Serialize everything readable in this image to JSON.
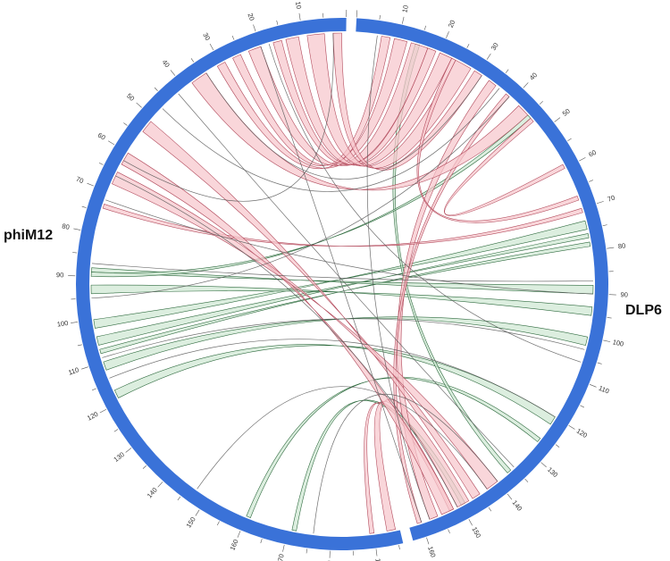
{
  "colors": {
    "ideogram": "#3a72d8",
    "link_same_fill": "#f7c6cc",
    "link_same_stroke": "#b24a5c",
    "link_inv_fill": "#cfe8d3",
    "link_inv_stroke": "#2f6b3f",
    "tick": "#555555"
  },
  "genomes": [
    {
      "id": "phiM12",
      "label": "phiM12",
      "length_kb": 196,
      "label_step": 10
    },
    {
      "id": "DLP6",
      "label": "DLP6",
      "length_kb": 163,
      "label_step": 10
    }
  ],
  "links": [
    {
      "type": "same",
      "a": [
        "phiM12",
        193,
        195
      ],
      "b": [
        "DLP6",
        148,
        151
      ]
    },
    {
      "type": "same",
      "a": [
        "phiM12",
        189,
        190
      ],
      "b": [
        "DLP6",
        152,
        153
      ]
    },
    {
      "type": "same",
      "a": [
        "DLP6",
        6,
        8
      ],
      "b": [
        "phiM12",
        25,
        27
      ]
    },
    {
      "type": "same",
      "a": [
        "DLP6",
        9,
        12
      ],
      "b": [
        "phiM12",
        29,
        31
      ]
    },
    {
      "type": "same",
      "a": [
        "DLP6",
        13,
        17
      ],
      "b": [
        "phiM12",
        20,
        23
      ]
    },
    {
      "type": "same",
      "a": [
        "DLP6",
        17,
        19
      ],
      "b": [
        "phiM12",
        15,
        17
      ]
    },
    {
      "type": "same",
      "a": [
        "DLP6",
        20,
        23
      ],
      "b": [
        "phiM12",
        11,
        14
      ]
    },
    {
      "type": "same",
      "a": [
        "DLP6",
        24,
        28
      ],
      "b": [
        "phiM12",
        5,
        9
      ]
    },
    {
      "type": "same",
      "a": [
        "DLP6",
        29,
        31
      ],
      "b": [
        "phiM12",
        1,
        3
      ]
    },
    {
      "type": "same",
      "a": [
        "DLP6",
        33,
        35
      ],
      "b": [
        "DLP6",
        156,
        158
      ]
    },
    {
      "type": "same",
      "a": [
        "DLP6",
        38,
        39
      ],
      "b": [
        "DLP6",
        160,
        161
      ]
    },
    {
      "type": "same",
      "a": [
        "DLP6",
        42,
        45
      ],
      "b": [
        "phiM12",
        34,
        38
      ]
    },
    {
      "type": "same",
      "a": [
        "DLP6",
        46,
        47
      ],
      "b": [
        "DLP6",
        59,
        60
      ]
    },
    {
      "type": "same",
      "a": [
        "DLP6",
        23,
        24
      ],
      "b": [
        "DLP6",
        67,
        68
      ]
    },
    {
      "type": "same",
      "a": [
        "DLP6",
        70,
        71
      ],
      "b": [
        "phiM12",
        73,
        74
      ]
    },
    {
      "type": "same",
      "a": [
        "phiM12",
        60,
        63
      ],
      "b": [
        "DLP6",
        152,
        155
      ]
    },
    {
      "type": "same",
      "a": [
        "phiM12",
        51,
        54
      ],
      "b": [
        "DLP6",
        145,
        147
      ]
    },
    {
      "type": "same",
      "a": [
        "phiM12",
        65,
        68
      ],
      "b": [
        "DLP6",
        140,
        143
      ]
    },
    {
      "type": "inv",
      "a": [
        "phiM12",
        160,
        161
      ],
      "b": [
        "DLP6",
        126,
        127
      ]
    },
    {
      "type": "inv",
      "a": [
        "phiM12",
        117,
        119
      ],
      "b": [
        "DLP6",
        120,
        122
      ]
    },
    {
      "type": "inv",
      "a": [
        "phiM12",
        110,
        112
      ],
      "b": [
        "DLP6",
        100,
        102
      ]
    },
    {
      "type": "inv",
      "a": [
        "phiM12",
        107,
        108
      ],
      "b": [
        "DLP6",
        78,
        79
      ]
    },
    {
      "type": "inv",
      "a": [
        "phiM12",
        104,
        106
      ],
      "b": [
        "DLP6",
        76,
        77
      ]
    },
    {
      "type": "inv",
      "a": [
        "phiM12",
        100,
        102
      ],
      "b": [
        "DLP6",
        73,
        75
      ]
    },
    {
      "type": "inv",
      "a": [
        "phiM12",
        92,
        94
      ],
      "b": [
        "DLP6",
        93,
        95
      ]
    },
    {
      "type": "inv",
      "a": [
        "phiM12",
        88,
        89
      ],
      "b": [
        "DLP6",
        88,
        90
      ]
    },
    {
      "type": "inv",
      "a": [
        "DLP6",
        14,
        15
      ],
      "b": [
        "DLP6",
        136,
        137
      ]
    },
    {
      "type": "inv",
      "a": [
        "phiM12",
        89,
        90
      ],
      "b": [
        "DLP6",
        45,
        46
      ]
    },
    {
      "type": "inv",
      "a": [
        "phiM12",
        171,
        172
      ],
      "b": [
        "DLP6",
        149,
        150
      ]
    }
  ],
  "thin_links": [
    [
      "phiM12",
      176,
      "DLP6",
      140
    ],
    [
      "phiM12",
      114,
      "DLP6",
      120
    ],
    [
      "phiM12",
      109,
      "DLP6",
      103
    ],
    [
      "phiM12",
      95,
      "DLP6",
      39
    ],
    [
      "phiM12",
      87,
      "DLP6",
      87
    ],
    [
      "phiM12",
      72,
      "DLP6",
      90
    ],
    [
      "phiM12",
      66,
      "DLP6",
      151
    ],
    [
      "phiM12",
      42,
      "DLP6",
      135
    ],
    [
      "phiM12",
      34,
      "DLP6",
      31
    ],
    [
      "phiM12",
      20,
      "DLP6",
      160
    ],
    [
      "phiM12",
      18,
      "DLP6",
      106
    ],
    [
      "phiM12",
      147,
      "DLP6",
      143
    ],
    [
      "DLP6",
      5,
      "DLP6",
      158
    ],
    [
      "DLP6",
      36,
      "phiM12",
      47
    ],
    [
      "phiM12",
      3,
      "phiM12",
      62
    ]
  ]
}
